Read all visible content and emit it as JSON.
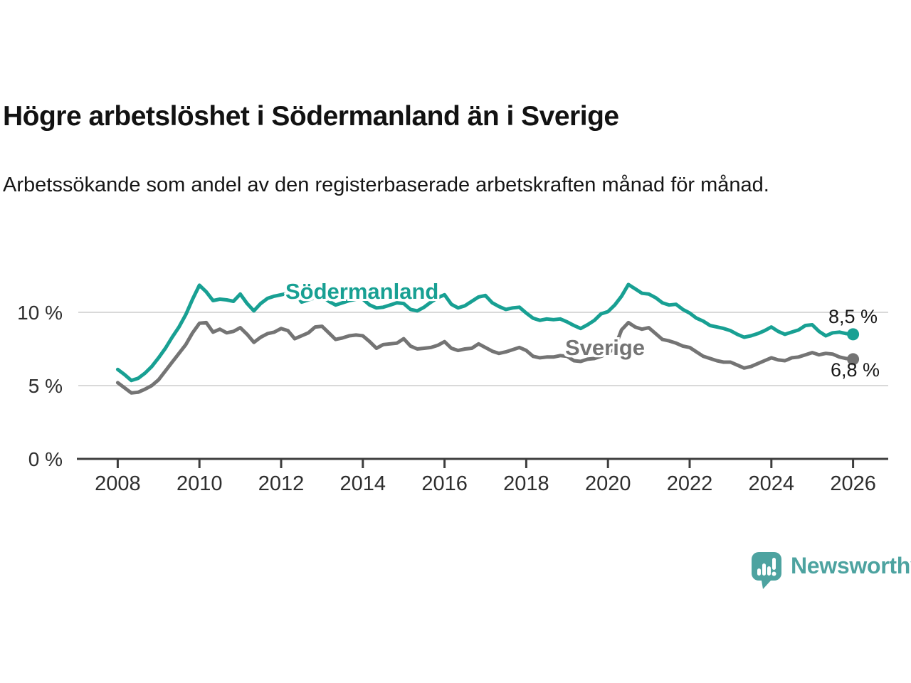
{
  "header": {
    "title": "Högre arbetslöshet i Södermanland än i Sverige",
    "subtitle": "Arbetssökande som andel av den registerbaserade arbetskraften månad för månad."
  },
  "chart_data": {
    "type": "line",
    "unit": "%",
    "x_start": 2008,
    "x_step_years": 0.1666667,
    "xlim": [
      2007,
      2027
    ],
    "ylim": [
      0,
      12.5
    ],
    "grid": "horizontal",
    "legend_position": "inline-labels",
    "x_ticks": [
      "2008",
      "2010",
      "2012",
      "2014",
      "2016",
      "2018",
      "2020",
      "2022",
      "2024",
      "2026"
    ],
    "y_ticks": [
      {
        "value": 0,
        "label": "0 %"
      },
      {
        "value": 5,
        "label": "5 %"
      },
      {
        "value": 10,
        "label": "10 %"
      }
    ],
    "series": [
      {
        "name": "Södermanland",
        "color": "#18a093",
        "end_value": 8.5,
        "end_label": "8,5 %",
        "values": [
          6.1,
          5.75,
          5.35,
          5.5,
          5.85,
          6.3,
          6.9,
          7.55,
          8.3,
          9.0,
          9.85,
          10.9,
          11.85,
          11.4,
          10.8,
          10.9,
          10.85,
          10.75,
          11.25,
          10.6,
          10.1,
          10.6,
          10.95,
          11.1,
          11.2,
          11.3,
          11.35,
          10.7,
          10.85,
          11.0,
          11.1,
          10.75,
          10.5,
          10.65,
          10.8,
          10.9,
          10.9,
          10.5,
          10.3,
          10.35,
          10.5,
          10.65,
          10.6,
          10.2,
          10.1,
          10.35,
          10.7,
          11.0,
          11.2,
          10.55,
          10.3,
          10.45,
          10.75,
          11.05,
          11.15,
          10.65,
          10.4,
          10.2,
          10.3,
          10.35,
          9.95,
          9.6,
          9.45,
          9.55,
          9.5,
          9.55,
          9.35,
          9.1,
          8.9,
          9.15,
          9.45,
          9.9,
          10.05,
          10.5,
          11.1,
          11.9,
          11.6,
          11.3,
          11.25,
          11.0,
          10.65,
          10.5,
          10.55,
          10.2,
          9.95,
          9.6,
          9.4,
          9.1,
          9.0,
          8.9,
          8.75,
          8.5,
          8.3,
          8.4,
          8.55,
          8.75,
          9.0,
          8.7,
          8.5,
          8.65,
          8.8,
          9.1,
          9.15,
          8.7,
          8.4,
          8.6,
          8.65,
          8.55,
          8.5
        ]
      },
      {
        "name": "Sverige",
        "color": "#747474",
        "end_value": 6.8,
        "end_label": "6,8 %",
        "values": [
          5.2,
          4.85,
          4.5,
          4.55,
          4.75,
          5.0,
          5.4,
          6.0,
          6.6,
          7.2,
          7.8,
          8.6,
          9.25,
          9.3,
          8.65,
          8.85,
          8.6,
          8.7,
          8.95,
          8.5,
          7.95,
          8.3,
          8.55,
          8.65,
          8.9,
          8.75,
          8.2,
          8.4,
          8.6,
          9.0,
          9.05,
          8.6,
          8.15,
          8.25,
          8.4,
          8.45,
          8.4,
          8.0,
          7.55,
          7.8,
          7.85,
          7.9,
          8.2,
          7.7,
          7.5,
          7.55,
          7.6,
          7.75,
          8.0,
          7.55,
          7.4,
          7.5,
          7.55,
          7.85,
          7.6,
          7.35,
          7.2,
          7.3,
          7.45,
          7.6,
          7.4,
          7.0,
          6.9,
          6.95,
          6.95,
          7.05,
          7.0,
          6.7,
          6.65,
          6.8,
          6.85,
          7.0,
          7.2,
          7.6,
          8.8,
          9.3,
          9.0,
          8.85,
          8.95,
          8.55,
          8.15,
          8.05,
          7.9,
          7.7,
          7.6,
          7.3,
          7.0,
          6.85,
          6.7,
          6.6,
          6.6,
          6.4,
          6.2,
          6.3,
          6.5,
          6.7,
          6.9,
          6.75,
          6.7,
          6.9,
          6.95,
          7.1,
          7.25,
          7.1,
          7.2,
          7.15,
          6.95,
          6.85,
          6.8
        ]
      }
    ],
    "style": {
      "grid_color": "#d9d9d9",
      "axis_color": "#3d3d3d",
      "tick_label_color": "#2e2e2e"
    }
  },
  "logo": {
    "text": "Newsworthy",
    "color": "#4da3a0"
  }
}
